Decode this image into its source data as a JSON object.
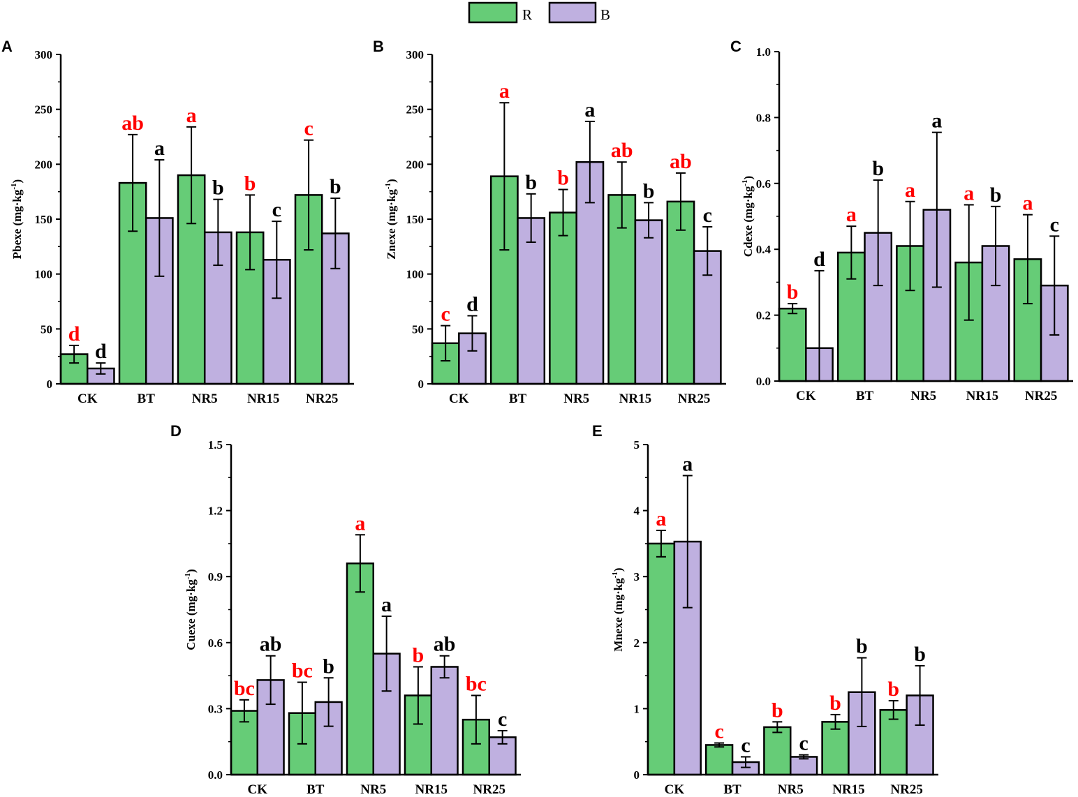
{
  "colors": {
    "R": "#66cc77",
    "B": "#bfb0e0",
    "sig_R": "#ff0000",
    "sig_B": "#000000"
  },
  "legend": [
    {
      "key": "R",
      "label": "R"
    },
    {
      "key": "B",
      "label": "B"
    }
  ],
  "chart_data": [
    {
      "type": "bar",
      "panel": "A",
      "ylabel_main": "Pbexe (mg·kg",
      "ylabel_sup": "-1",
      "ylabel_end": ")",
      "ylim": [
        0,
        300
      ],
      "yticks": [
        0,
        50,
        100,
        150,
        200,
        250,
        300
      ],
      "ytick_labels": [
        "0",
        "50",
        "100",
        "150",
        "200",
        "250",
        "300"
      ],
      "categories": [
        "CK",
        "BT",
        "NR5",
        "NR15",
        "NR25"
      ],
      "series": [
        {
          "name": "R",
          "values": [
            27,
            183,
            190,
            138,
            172
          ],
          "errors": [
            8,
            44,
            44,
            34,
            50
          ],
          "letters": [
            "d",
            "ab",
            "a",
            "b",
            "c"
          ]
        },
        {
          "name": "B",
          "values": [
            14,
            151,
            138,
            113,
            137
          ],
          "errors": [
            5,
            53,
            30,
            35,
            32
          ],
          "letters": [
            "d",
            "a",
            "b",
            "c",
            "b"
          ]
        }
      ]
    },
    {
      "type": "bar",
      "panel": "B",
      "ylabel_main": "Znexe (mg·kg",
      "ylabel_sup": "-1",
      "ylabel_end": ")",
      "ylim": [
        0,
        300
      ],
      "yticks": [
        0,
        50,
        100,
        150,
        200,
        250,
        300
      ],
      "ytick_labels": [
        "0",
        "50",
        "100",
        "150",
        "200",
        "250",
        "300"
      ],
      "categories": [
        "CK",
        "BT",
        "NR5",
        "NR15",
        "NR25"
      ],
      "series": [
        {
          "name": "R",
          "values": [
            37,
            189,
            156,
            172,
            166
          ],
          "errors": [
            16,
            67,
            21,
            30,
            26
          ],
          "letters": [
            "c",
            "a",
            "b",
            "ab",
            "ab"
          ]
        },
        {
          "name": "B",
          "values": [
            46,
            151,
            202,
            149,
            121
          ],
          "errors": [
            16,
            22,
            37,
            16,
            22
          ],
          "letters": [
            "d",
            "b",
            "a",
            "b",
            "c"
          ]
        }
      ]
    },
    {
      "type": "bar",
      "panel": "C",
      "ylabel_main": "Cdexe (mg·kg",
      "ylabel_sup": "-1",
      "ylabel_end": ")",
      "ylim": [
        0,
        1.0
      ],
      "yticks": [
        0,
        0.2,
        0.4,
        0.6,
        0.8,
        1.0
      ],
      "ytick_labels": [
        "0.0",
        "0.2",
        "0.4",
        "0.6",
        "0.8",
        "1.0"
      ],
      "categories": [
        "CK",
        "BT",
        "NR5",
        "NR15",
        "NR25"
      ],
      "series": [
        {
          "name": "R",
          "values": [
            0.22,
            0.39,
            0.41,
            0.36,
            0.37
          ],
          "errors": [
            0.015,
            0.08,
            0.135,
            0.175,
            0.135
          ],
          "letters": [
            "b",
            "a",
            "a",
            "a",
            "a"
          ]
        },
        {
          "name": "B",
          "values": [
            0.1,
            0.45,
            0.52,
            0.41,
            0.29
          ],
          "errors": [
            0.235,
            0.16,
            0.235,
            0.12,
            0.15
          ],
          "letters": [
            "d",
            "b",
            "a",
            "b",
            "c"
          ]
        }
      ]
    },
    {
      "type": "bar",
      "panel": "D",
      "ylabel_main": "Cuexe (mg·kg",
      "ylabel_sup": "-1",
      "ylabel_end": ")",
      "ylim": [
        0,
        1.5
      ],
      "yticks": [
        0,
        0.3,
        0.6,
        0.9,
        1.2,
        1.5
      ],
      "ytick_labels": [
        "0.0",
        "0.3",
        "0.6",
        "0.9",
        "1.2",
        "1.5"
      ],
      "categories": [
        "CK",
        "BT",
        "NR5",
        "NR15",
        "NR25"
      ],
      "series": [
        {
          "name": "R",
          "values": [
            0.29,
            0.28,
            0.96,
            0.36,
            0.25
          ],
          "errors": [
            0.05,
            0.14,
            0.13,
            0.13,
            0.11
          ],
          "letters": [
            "bc",
            "bc",
            "a",
            "b",
            "bc"
          ]
        },
        {
          "name": "B",
          "values": [
            0.43,
            0.33,
            0.55,
            0.49,
            0.17
          ],
          "errors": [
            0.11,
            0.11,
            0.17,
            0.05,
            0.03
          ],
          "letters": [
            "ab",
            "b",
            "a",
            "ab",
            "c"
          ]
        }
      ]
    },
    {
      "type": "bar",
      "panel": "E",
      "ylabel_main": "Mnexe (mg·kg",
      "ylabel_sup": "-1",
      "ylabel_end": ")",
      "ylim": [
        0,
        5
      ],
      "yticks": [
        0,
        1,
        2,
        3,
        4,
        5
      ],
      "ytick_labels": [
        "0",
        "1",
        "2",
        "3",
        "4",
        "5"
      ],
      "categories": [
        "CK",
        "BT",
        "NR5",
        "NR15",
        "NR25"
      ],
      "series": [
        {
          "name": "R",
          "values": [
            3.5,
            0.45,
            0.72,
            0.8,
            0.98
          ],
          "errors": [
            0.2,
            0.03,
            0.08,
            0.11,
            0.14
          ],
          "letters": [
            "a",
            "c",
            "b",
            "b",
            "b"
          ]
        },
        {
          "name": "B",
          "values": [
            3.53,
            0.19,
            0.27,
            1.25,
            1.2
          ],
          "errors": [
            1.0,
            0.08,
            0.03,
            0.52,
            0.45
          ],
          "letters": [
            "a",
            "c",
            "c",
            "b",
            "b"
          ]
        }
      ]
    }
  ]
}
